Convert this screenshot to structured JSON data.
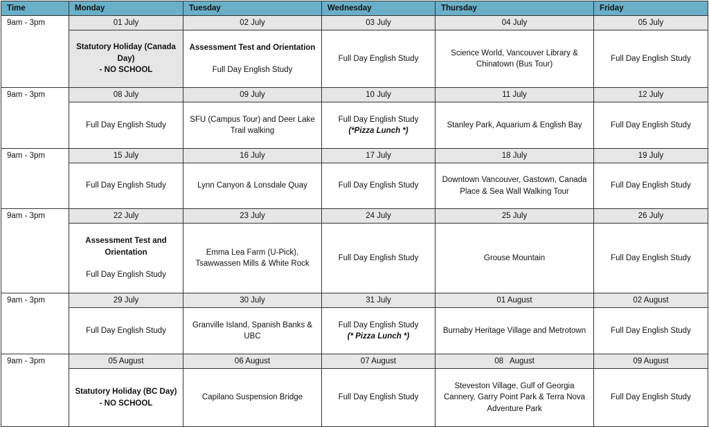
{
  "header": {
    "columns": [
      "Time",
      "Monday",
      "Tuesday",
      "Wednesday",
      "Thursday",
      "Friday"
    ]
  },
  "colors": {
    "header_bg": "#6aafc8",
    "date_row_bg": "#e6e6e6"
  },
  "weeks": [
    {
      "time": "9am - 3pm",
      "days": [
        {
          "date": "01 July",
          "bold": "Statutory Holiday (Canada Day)",
          "bold2": "- NO SCHOOL",
          "holiday": true
        },
        {
          "date": "02 July",
          "bold": "Assessment Test and Orientation",
          "text": "Full Day English Study",
          "gap": true
        },
        {
          "date": "03 July",
          "text": "Full Day English Study"
        },
        {
          "date": "04 July",
          "text": "Science World, Vancouver Library & Chinatown (Bus Tour)"
        },
        {
          "date": "05 July",
          "text": "Full Day English Study"
        }
      ]
    },
    {
      "time": "9am - 3pm",
      "days": [
        {
          "date": "08 July",
          "text": "Full Day English Study"
        },
        {
          "date": "09 July",
          "text": "SFU (Campus Tour) and Deer Lake Trail walking"
        },
        {
          "date": "10 July",
          "text": "Full Day English Study",
          "note": "(*Pizza Lunch *)"
        },
        {
          "date": "11 July",
          "text": "Stanley Park, Aquarium & English Bay"
        },
        {
          "date": "12 July",
          "text": "Full Day English Study"
        }
      ]
    },
    {
      "time": "9am - 3pm",
      "days": [
        {
          "date": "15 July",
          "text": "Full Day English Study"
        },
        {
          "date": "16 July",
          "text": "Lynn Canyon & Lonsdale Quay"
        },
        {
          "date": "17 July",
          "text": "Full Day English Study"
        },
        {
          "date": "18 July",
          "text": "Downtown Vancouver, Gastown, Canada Place & Sea Wall Walking Tour"
        },
        {
          "date": "19 July",
          "text": "Full Day English Study"
        }
      ]
    },
    {
      "time": "9am - 3pm",
      "days": [
        {
          "date": "22 July",
          "bold": "Assessment Test and Orientation",
          "text": "Full Day English Study",
          "gap": true
        },
        {
          "date": "23 July",
          "text": "Emma Lea Farm (U-Pick), Tsawwassen Mills & White Rock"
        },
        {
          "date": "24 July",
          "text": "Full Day English Study"
        },
        {
          "date": "25 July",
          "text": "Grouse Mountain"
        },
        {
          "date": "26 July",
          "text": "Full Day English Study"
        }
      ]
    },
    {
      "time": "9am - 3pm",
      "days": [
        {
          "date": "29 July",
          "text": "Full Day English Study"
        },
        {
          "date": "30 July",
          "text": "Granville Island, Spanish Banks & UBC"
        },
        {
          "date": "31 July",
          "text": "Full Day English Study",
          "note": "(* Pizza Lunch *)"
        },
        {
          "date": "01 August",
          "text": "Burnaby Heritage Village and Metrotown"
        },
        {
          "date": "02 August",
          "text": "Full Day English Study"
        }
      ]
    },
    {
      "time": "9am - 3pm",
      "days": [
        {
          "date": "05 August",
          "bold": "Statutory Holiday (BC Day)",
          "bold2": "- NO SCHOOL"
        },
        {
          "date": "06 August",
          "text": "Capilano Suspension Bridge"
        },
        {
          "date": "07 August",
          "text": "Full Day English Study"
        },
        {
          "date": "08   August",
          "text": "Steveston Village, Gulf of Georgia Cannery, Garry Point Park & Terra Nova Adventure Park"
        },
        {
          "date": "09 August",
          "text": "Full Day English Study"
        }
      ]
    }
  ]
}
